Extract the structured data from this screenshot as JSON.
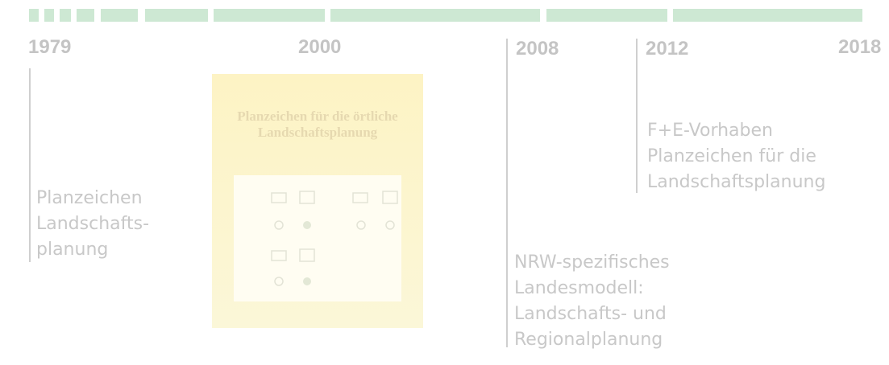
{
  "timeline": {
    "years": [
      "1979",
      "2000",
      "2008",
      "2012",
      "2018"
    ],
    "events": [
      {
        "lines": [
          "Planzeichen",
          "Landschafts-",
          "planung"
        ]
      },
      {
        "lines": [
          "NRW-spezifisches",
          "Landesmodell:",
          "Landschafts- und",
          "Regionalplanung"
        ]
      },
      {
        "lines": [
          "F+E-Vorhaben",
          "Planzeichen für die",
          "Landschaftsplanung"
        ]
      }
    ],
    "cover": {
      "title_lines": [
        "Planzeichen für die örtliche",
        "Landschaftsplanung"
      ]
    }
  }
}
